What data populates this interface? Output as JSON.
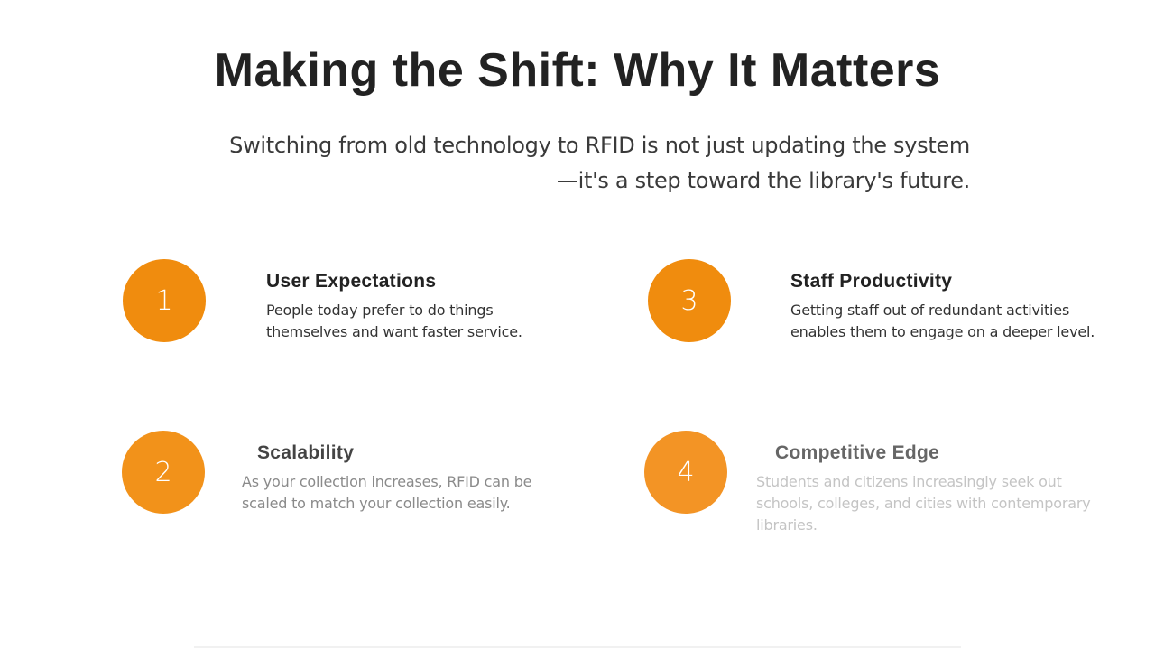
{
  "slide": {
    "title": "Making the Shift: Why It Matters",
    "subtitle": {
      "line1": "Switching from old technology to RFID is not just updating the system",
      "line2": "—it's a step toward the library's future."
    },
    "items": [
      {
        "number": "1",
        "title": "User Expectations",
        "description": "People today prefer to do things themselves and want faster service."
      },
      {
        "number": "2",
        "title": "Scalability",
        "description": "As your collection increases, RFID can be scaled to match your collection easily."
      },
      {
        "number": "3",
        "title": "Staff Productivity",
        "description": "Getting staff out of redundant activities enables them to engage on a deeper level."
      },
      {
        "number": "4",
        "title": "Competitive Edge",
        "description": "Students and citizens increasingly seek out schools, colleges, and cities with contemporary libraries."
      }
    ]
  },
  "colors": {
    "accent": "#f08c0e",
    "title_text": "#222222",
    "body_text": "#333333"
  }
}
